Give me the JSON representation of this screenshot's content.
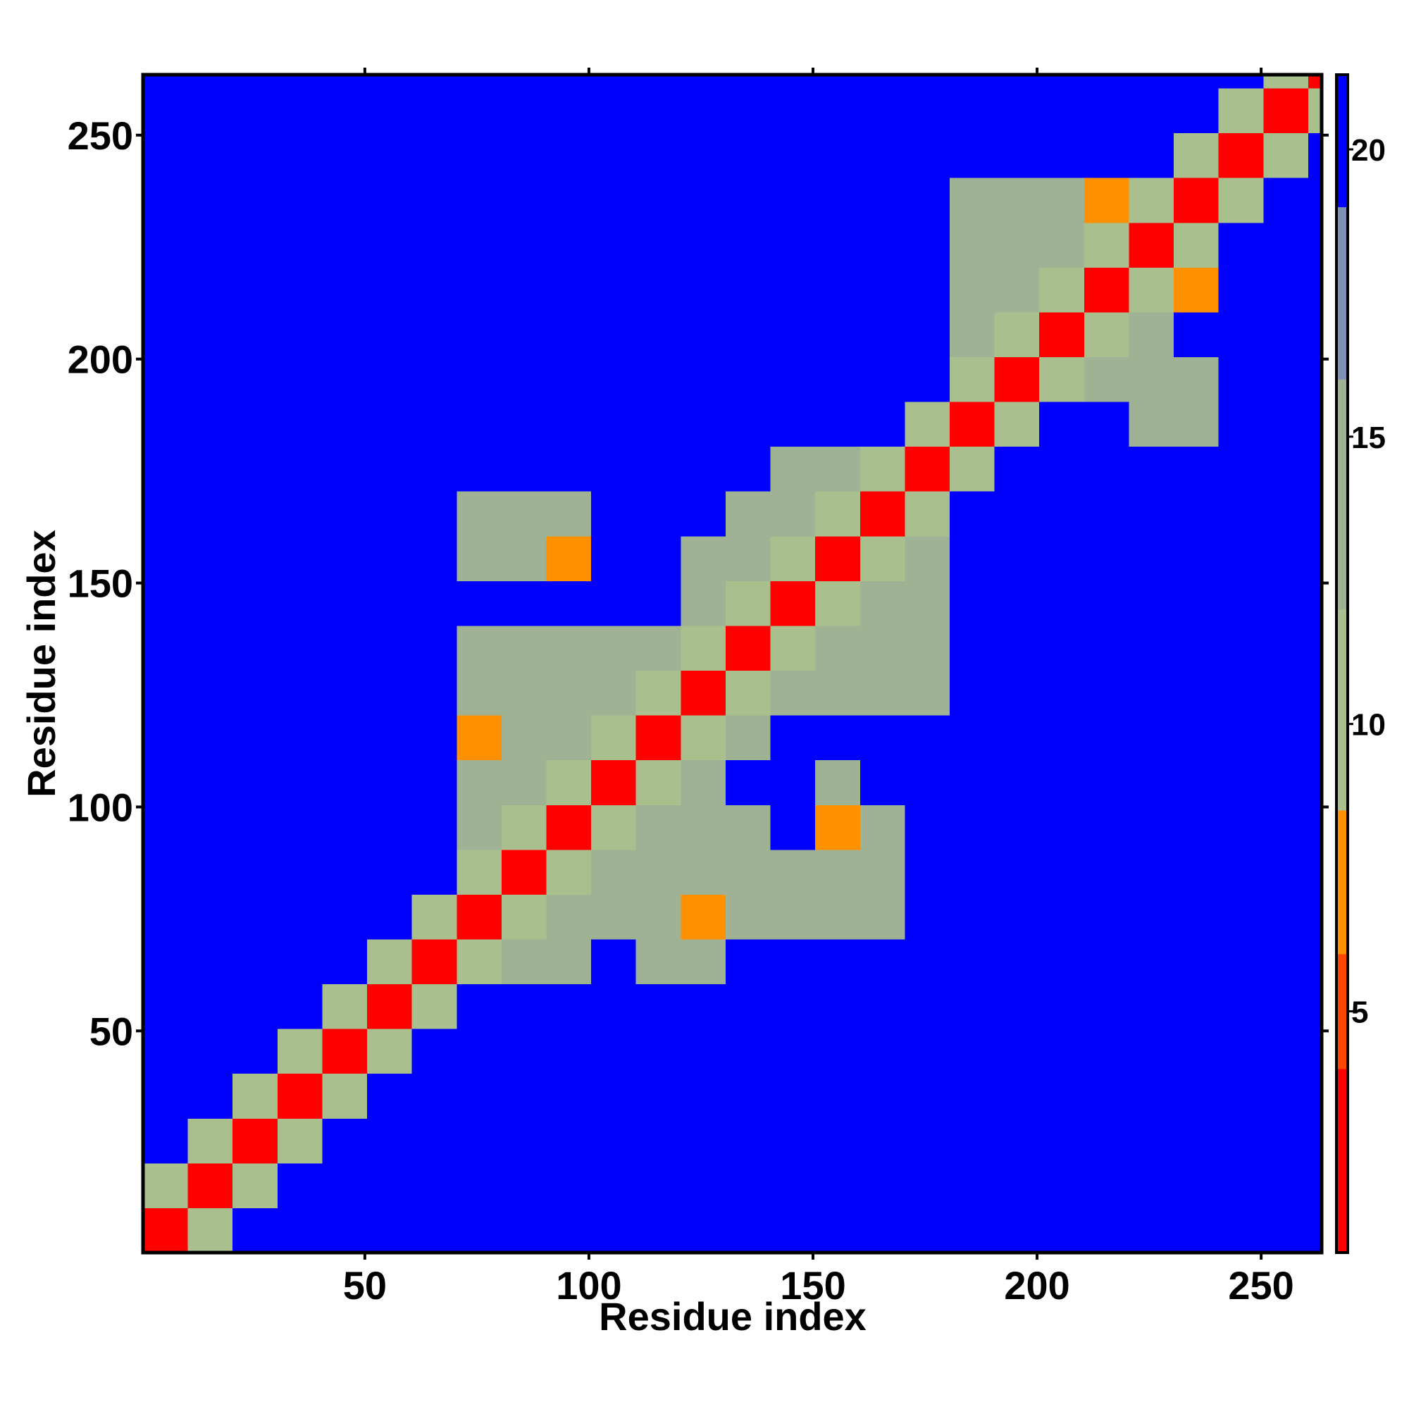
{
  "chart_data": {
    "type": "heatmap",
    "xlabel": "Residue index",
    "ylabel": "Residue index",
    "bins": [
      0.5,
      10.5,
      20.5,
      30.5,
      40.5,
      50.5,
      60.5,
      70.5,
      80.5,
      90.5,
      100.5,
      110.5,
      120.5,
      130.5,
      140.5,
      150.5,
      160.5,
      170.5,
      180.5,
      190.5,
      200.5,
      210.5,
      220.5,
      230.5,
      240.5,
      250.5,
      260.5,
      263.5
    ],
    "xlim": [
      0.5,
      263.5
    ],
    "ylim": [
      0.5,
      263.5
    ],
    "xticks": [
      50,
      100,
      150,
      200,
      250
    ],
    "yticks": [
      50,
      100,
      150,
      200,
      250
    ],
    "z": [
      [
        3,
        10,
        21,
        21,
        21,
        21,
        21,
        21,
        21,
        21,
        21,
        21,
        21,
        21,
        21,
        21,
        21,
        21,
        21,
        21,
        21,
        21,
        21,
        21,
        21,
        21,
        21
      ],
      [
        10,
        3,
        10,
        21,
        21,
        21,
        21,
        21,
        21,
        21,
        21,
        21,
        21,
        21,
        21,
        21,
        21,
        21,
        21,
        21,
        21,
        21,
        21,
        21,
        21,
        21,
        21
      ],
      [
        21,
        10,
        3,
        10,
        21,
        21,
        21,
        21,
        21,
        21,
        21,
        21,
        21,
        21,
        21,
        21,
        21,
        21,
        21,
        21,
        21,
        21,
        21,
        21,
        21,
        21,
        21
      ],
      [
        21,
        21,
        10,
        3,
        10,
        21,
        21,
        21,
        21,
        21,
        21,
        21,
        21,
        21,
        21,
        21,
        21,
        21,
        21,
        21,
        21,
        21,
        21,
        21,
        21,
        21,
        21
      ],
      [
        21,
        21,
        21,
        10,
        3,
        10,
        21,
        21,
        21,
        21,
        21,
        21,
        21,
        21,
        21,
        21,
        21,
        21,
        21,
        21,
        21,
        21,
        21,
        21,
        21,
        21,
        21
      ],
      [
        21,
        21,
        21,
        21,
        10,
        3,
        10,
        21,
        21,
        21,
        21,
        21,
        21,
        21,
        21,
        21,
        21,
        21,
        21,
        21,
        21,
        21,
        21,
        21,
        21,
        21,
        21
      ],
      [
        21,
        21,
        21,
        21,
        21,
        10,
        3,
        10,
        13,
        13,
        21,
        13,
        13,
        21,
        21,
        21,
        21,
        21,
        21,
        21,
        21,
        21,
        21,
        21,
        21,
        21,
        21
      ],
      [
        21,
        21,
        21,
        21,
        21,
        21,
        10,
        3,
        10,
        13,
        13,
        13,
        7,
        13,
        13,
        13,
        13,
        21,
        21,
        21,
        21,
        21,
        21,
        21,
        21,
        21,
        21
      ],
      [
        21,
        21,
        21,
        21,
        21,
        21,
        21,
        10,
        3,
        10,
        13,
        13,
        13,
        13,
        13,
        13,
        13,
        21,
        21,
        21,
        21,
        21,
        21,
        21,
        21,
        21,
        21
      ],
      [
        21,
        21,
        21,
        21,
        21,
        21,
        21,
        13,
        10,
        3,
        10,
        13,
        13,
        13,
        21,
        6,
        13,
        21,
        21,
        21,
        21,
        21,
        21,
        21,
        21,
        21,
        21
      ],
      [
        21,
        21,
        21,
        21,
        21,
        21,
        21,
        13,
        13,
        10,
        3,
        10,
        13,
        21,
        21,
        13,
        21,
        21,
        21,
        21,
        21,
        21,
        21,
        21,
        21,
        21,
        21
      ],
      [
        21,
        21,
        21,
        21,
        21,
        21,
        21,
        7,
        13,
        13,
        10,
        3,
        10,
        13,
        21,
        21,
        21,
        21,
        21,
        21,
        21,
        21,
        21,
        21,
        21,
        21,
        21
      ],
      [
        21,
        21,
        21,
        21,
        21,
        21,
        21,
        13,
        13,
        13,
        13,
        10,
        3,
        10,
        13,
        13,
        13,
        13,
        21,
        21,
        21,
        21,
        21,
        21,
        21,
        21,
        21
      ],
      [
        21,
        21,
        21,
        21,
        21,
        21,
        21,
        13,
        13,
        13,
        13,
        13,
        10,
        3,
        10,
        13,
        13,
        13,
        21,
        21,
        21,
        21,
        21,
        21,
        21,
        21,
        21
      ],
      [
        21,
        21,
        21,
        21,
        21,
        21,
        21,
        21,
        21,
        21,
        21,
        21,
        13,
        10,
        3,
        10,
        13,
        13,
        21,
        21,
        21,
        21,
        21,
        21,
        21,
        21,
        21
      ],
      [
        21,
        21,
        21,
        21,
        21,
        21,
        21,
        13,
        13,
        7,
        21,
        21,
        13,
        13,
        10,
        3,
        10,
        13,
        21,
        21,
        21,
        21,
        21,
        21,
        21,
        21,
        21
      ],
      [
        21,
        21,
        21,
        21,
        21,
        21,
        21,
        13,
        13,
        13,
        21,
        21,
        21,
        13,
        13,
        10,
        3,
        10,
        21,
        21,
        21,
        21,
        21,
        21,
        21,
        21,
        21
      ],
      [
        21,
        21,
        21,
        21,
        21,
        21,
        21,
        21,
        21,
        21,
        21,
        21,
        21,
        21,
        13,
        13,
        10,
        3,
        10,
        21,
        21,
        21,
        21,
        21,
        21,
        21,
        21
      ],
      [
        21,
        21,
        21,
        21,
        21,
        21,
        21,
        21,
        21,
        21,
        21,
        21,
        21,
        21,
        21,
        21,
        21,
        10,
        3,
        10,
        21,
        21,
        13,
        13,
        21,
        21,
        21
      ],
      [
        21,
        21,
        21,
        21,
        21,
        21,
        21,
        21,
        21,
        21,
        21,
        21,
        21,
        21,
        21,
        21,
        21,
        21,
        10,
        3,
        10,
        13,
        13,
        13,
        21,
        21,
        21
      ],
      [
        21,
        21,
        21,
        21,
        21,
        21,
        21,
        21,
        21,
        21,
        21,
        21,
        21,
        21,
        21,
        21,
        21,
        21,
        13,
        10,
        3,
        10,
        13,
        21,
        21,
        21,
        21
      ],
      [
        21,
        21,
        21,
        21,
        21,
        21,
        21,
        21,
        21,
        21,
        21,
        21,
        21,
        21,
        21,
        21,
        21,
        21,
        13,
        13,
        10,
        3,
        10,
        7,
        21,
        21,
        21
      ],
      [
        21,
        21,
        21,
        21,
        21,
        21,
        21,
        21,
        21,
        21,
        21,
        21,
        21,
        21,
        21,
        21,
        21,
        21,
        13,
        13,
        13,
        10,
        3,
        10,
        21,
        21,
        21
      ],
      [
        21,
        21,
        21,
        21,
        21,
        21,
        21,
        21,
        21,
        21,
        21,
        21,
        21,
        21,
        21,
        21,
        21,
        21,
        13,
        13,
        13,
        7,
        10,
        3,
        10,
        21,
        21
      ],
      [
        21,
        21,
        21,
        21,
        21,
        21,
        21,
        21,
        21,
        21,
        21,
        21,
        21,
        21,
        21,
        21,
        21,
        21,
        21,
        21,
        21,
        21,
        21,
        10,
        3,
        10,
        21
      ],
      [
        21,
        21,
        21,
        21,
        21,
        21,
        21,
        21,
        21,
        21,
        21,
        21,
        21,
        21,
        21,
        21,
        21,
        21,
        21,
        21,
        21,
        21,
        21,
        21,
        10,
        3,
        10
      ],
      [
        21,
        21,
        21,
        21,
        21,
        21,
        21,
        21,
        21,
        21,
        21,
        21,
        21,
        21,
        21,
        21,
        21,
        21,
        21,
        21,
        21,
        21,
        21,
        21,
        21,
        10,
        3
      ]
    ],
    "colorbar": {
      "lim": [
        0.8,
        21.3
      ],
      "ticks": [
        5,
        10,
        15,
        20
      ],
      "levels": [
        0.8,
        4,
        6,
        8.5,
        12,
        16,
        19,
        21.3
      ],
      "colors": [
        "#ff0000",
        "#ff4500",
        "#ff9000",
        "#a9bf8e",
        "#9fb394",
        "#7d8fb3",
        "#0000ff"
      ]
    }
  }
}
